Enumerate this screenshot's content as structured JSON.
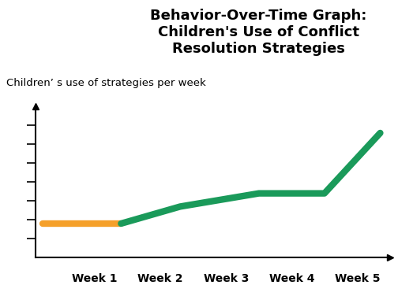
{
  "chart_data": {
    "type": "line",
    "title": "Behavior-Over-Time Graph: Children's Use of Conflict Resolution Strategies",
    "y_label": "Children’ s use of strategies per week",
    "series": [
      {
        "color": "#f5a02a",
        "x": [
          0.2,
          1.4
        ],
        "values": [
          1.8,
          1.8
        ]
      },
      {
        "color": "#1a9a5a",
        "x": [
          1.4,
          2.3,
          3.5,
          4.5,
          5.35
        ],
        "values": [
          1.8,
          2.7,
          3.4,
          3.4,
          6.6
        ]
      }
    ],
    "xlim": [
      0.1,
      5.5
    ],
    "xticks": [
      {
        "value": 1,
        "label": "Week 1"
      },
      {
        "value": 2,
        "label": "Week 2"
      },
      {
        "value": 3,
        "label": "Week 3"
      },
      {
        "value": 4,
        "label": "Week 4"
      },
      {
        "value": 5,
        "label": "Week 5"
      }
    ],
    "ylim": [
      0,
      8
    ],
    "yticks": [
      1,
      2,
      3,
      4,
      5,
      6,
      7
    ],
    "grid": false,
    "tick_labels": "x",
    "line_style": "solid"
  }
}
